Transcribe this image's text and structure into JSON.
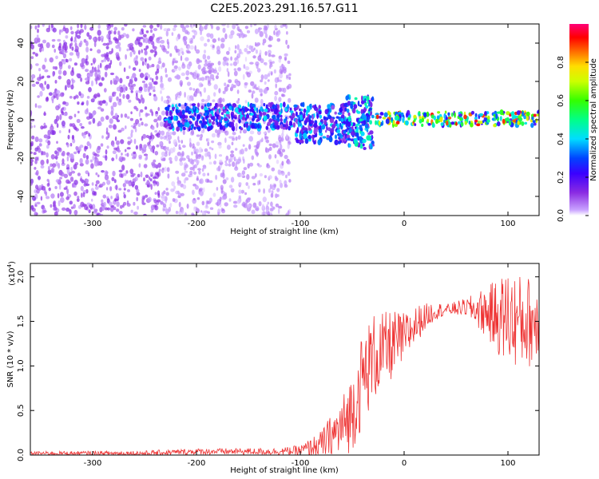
{
  "figure": {
    "title": "C2E5.2023.291.16.57.G11"
  },
  "chart_data": [
    {
      "type": "heatmap",
      "title": "C2E5.2023.291.16.57.G11",
      "xlabel": "Height of straight line (km)",
      "ylabel": "Frequency (Hz)",
      "xlim": [
        -360,
        130
      ],
      "ylim": [
        -50,
        50
      ],
      "x_ticks": [
        -300,
        -200,
        -100,
        0,
        100
      ],
      "y_ticks": [
        -40,
        -20,
        0,
        20,
        40
      ],
      "colorbar": {
        "label": "Normalized spectral amplitude",
        "range": [
          0.0,
          1.0
        ],
        "ticks": [
          0.0,
          0.2,
          0.4,
          0.6,
          0.8
        ],
        "colormap": "rainbow (white-purple-blue-cyan-green-yellow-red-magenta)"
      },
      "features": [
        {
          "x": [
            -360,
            -235
          ],
          "freq": [
            -50,
            50
          ],
          "amplitude": 0.1
        },
        {
          "x": [
            -235,
            -110
          ],
          "freq": [
            -50,
            50
          ],
          "amplitude": 0.05
        },
        {
          "x": [
            -230,
            -105
          ],
          "freq": [
            -5,
            8
          ],
          "amplitude": 0.3
        },
        {
          "x": [
            -105,
            -55
          ],
          "freq": [
            -12,
            8
          ],
          "amplitude": 0.3
        },
        {
          "x": [
            -55,
            -30
          ],
          "freq": [
            -15,
            12
          ],
          "amplitude": 0.35
        },
        {
          "x": [
            -30,
            130
          ],
          "freq": [
            -3,
            4
          ],
          "amplitude": 0.55
        }
      ]
    },
    {
      "type": "line",
      "xlabel": "Height of straight line (km)",
      "ylabel": "SNR (10 * v/v)",
      "y_scale_label": "(x10",
      "y_scale_exponent": "4",
      "xlim": [
        -360,
        130
      ],
      "ylim": [
        0.0,
        2.15
      ],
      "x_ticks": [
        -300,
        -200,
        -100,
        0,
        100
      ],
      "y_ticks": [
        "0.0",
        "0.5",
        "1.0",
        "1.5",
        "2.0"
      ],
      "color": "#ee3333",
      "envelope": {
        "x": [
          -360,
          -250,
          -200,
          -120,
          -100,
          -80,
          -60,
          -50,
          -40,
          -30,
          -20,
          -10,
          0,
          10,
          20,
          30,
          40,
          60,
          80,
          90,
          100,
          110,
          120,
          130
        ],
        "y": [
          0.02,
          0.02,
          0.04,
          0.04,
          0.05,
          0.12,
          0.3,
          0.5,
          0.85,
          1.1,
          1.15,
          1.25,
          1.3,
          1.45,
          1.55,
          1.62,
          1.63,
          1.66,
          1.6,
          1.55,
          1.55,
          1.5,
          1.5,
          1.5
        ]
      },
      "spread": {
        "x": [
          -360,
          -120,
          -100,
          -80,
          -60,
          -40,
          -20,
          0,
          20,
          40,
          60,
          80,
          100,
          130
        ],
        "y": [
          0.02,
          0.04,
          0.06,
          0.15,
          0.35,
          0.55,
          0.45,
          0.3,
          0.15,
          0.06,
          0.1,
          0.3,
          0.55,
          0.5
        ]
      }
    }
  ]
}
